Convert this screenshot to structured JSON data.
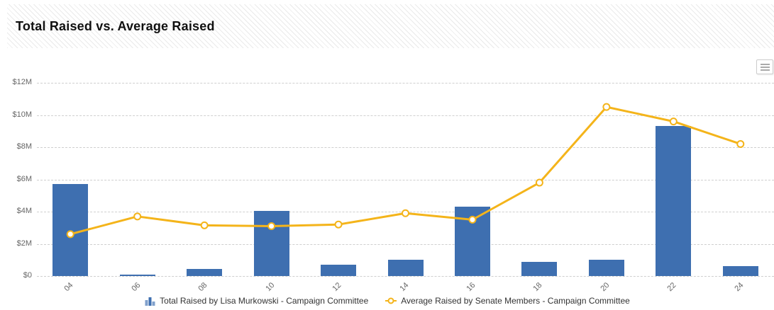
{
  "header": {
    "title": "Total Raised vs. Average Raised"
  },
  "toolbar": {
    "context_menu_icon": "hamburger-menu-icon"
  },
  "chart_data": {
    "type": "combo",
    "title": "Total Raised vs. Average Raised",
    "categories": [
      "04",
      "06",
      "08",
      "10",
      "12",
      "14",
      "16",
      "18",
      "20",
      "22",
      "24"
    ],
    "series": [
      {
        "name": "Total Raised by Lisa Murkowski - Campaign Committee",
        "type": "bar",
        "color": "#3E6FB0",
        "values": [
          5.7,
          0.1,
          0.45,
          4.05,
          0.7,
          1.0,
          4.3,
          0.9,
          1.0,
          9.3,
          0.6
        ]
      },
      {
        "name": "Average Raised by Senate Members - Campaign Committee",
        "type": "line",
        "color": "#F4B41A",
        "marker": "open-circle",
        "values": [
          2.6,
          3.7,
          3.15,
          3.1,
          3.2,
          3.9,
          3.5,
          5.8,
          10.5,
          9.6,
          8.2
        ]
      }
    ],
    "units": "millions USD",
    "xlabel": "",
    "ylabel": "",
    "ylim": [
      0,
      12
    ],
    "y_ticks": [
      {
        "value": 0,
        "label": "$0"
      },
      {
        "value": 2,
        "label": "$2M"
      },
      {
        "value": 4,
        "label": "$4M"
      },
      {
        "value": 6,
        "label": "$6M"
      },
      {
        "value": 8,
        "label": "$8M"
      },
      {
        "value": 10,
        "label": "$10M"
      },
      {
        "value": 12,
        "label": "$12M"
      }
    ],
    "grid": "dashed-horizontal",
    "legend_position": "bottom-center",
    "x_label_rotation": -45
  }
}
